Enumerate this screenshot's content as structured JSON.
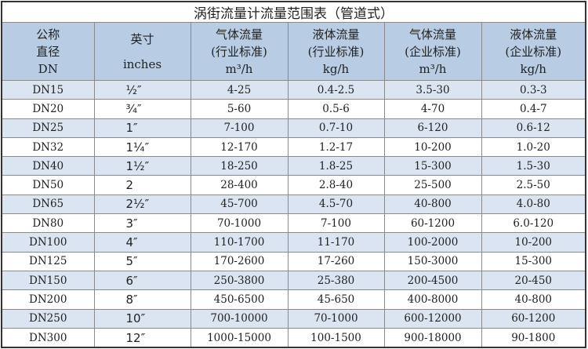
{
  "title": "涡街流量计流量范围表（管道式）",
  "headers": [
    [
      "公称",
      "直径",
      "DN"
    ],
    [
      "英寸",
      "inches"
    ],
    [
      "气体流量",
      "(行业标准)",
      "m³/h"
    ],
    [
      "液体流量",
      "(行业标准)",
      "kg/h"
    ],
    [
      "气体流量",
      "(企业标准)",
      "m³/h"
    ],
    [
      "液体流量",
      "(企业标准)",
      "kg/h"
    ]
  ],
  "rows": [
    [
      "DN15",
      "½″",
      "4-25",
      "0.4-2.5",
      "3.5-30",
      "0.3-3"
    ],
    [
      "DN20",
      "¾″",
      "5-60",
      "0.5-6",
      "4-70",
      "0.4-7"
    ],
    [
      "DN25",
      "1″",
      "7-100",
      "0.7-10",
      "6-120",
      "0.6-12"
    ],
    [
      "DN32",
      "1¼″",
      "12-170",
      "1.2-17",
      "10-200",
      "1.0-20"
    ],
    [
      "DN40",
      "1½″",
      "18-250",
      "1.8-25",
      "15-300",
      "1.5-30"
    ],
    [
      "DN50",
      "2",
      "28-400",
      "2.8-40",
      "25-500",
      "2.5-50"
    ],
    [
      "DN65",
      "2½″",
      "45-700",
      "4.5-70",
      "40-800",
      "4.0-80"
    ],
    [
      "DN80",
      "3″",
      "70-1000",
      "7-100",
      "60-1200",
      "6.0-120"
    ],
    [
      "DN100",
      "4″",
      "110-1700",
      "11-170",
      "100-2000",
      "10-200"
    ],
    [
      "DN125",
      "5″",
      "170-2600",
      "17-260",
      "150-3000",
      "15-300"
    ],
    [
      "DN150",
      "6″",
      "250-3800",
      "25-380",
      "200-4500",
      "20-450"
    ],
    [
      "DN200",
      "8″",
      "450-6500",
      "45-650",
      "400-8000",
      "40-800"
    ],
    [
      "DN250",
      "10″",
      "700-10000",
      "70-1000",
      "600-12000",
      "60-1200"
    ],
    [
      "DN300",
      "12″",
      "1000-15000",
      "100-1500",
      "900-18000",
      "90-1800"
    ]
  ],
  "colors": {
    "header_bg": "#b8cce4",
    "row_alt_bg": "#dbe5f1"
  }
}
